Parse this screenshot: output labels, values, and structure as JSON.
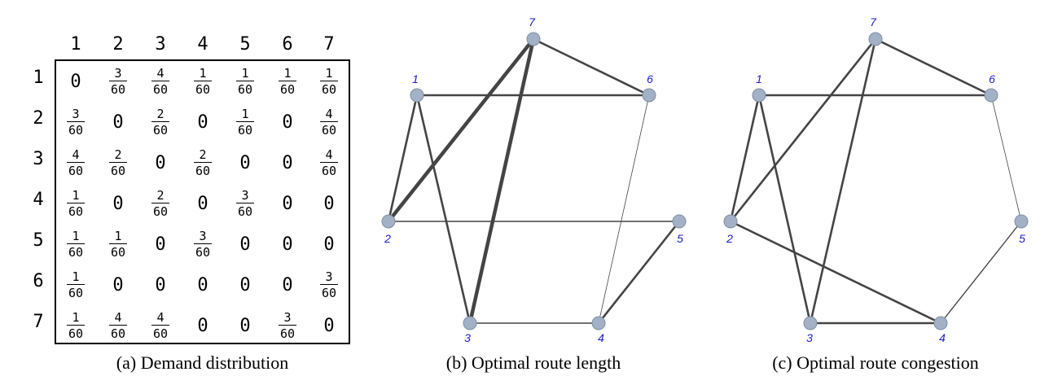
{
  "matrix": {
    "col_labels": [
      "1",
      "2",
      "3",
      "4",
      "5",
      "6",
      "7"
    ],
    "row_labels": [
      "1",
      "2",
      "3",
      "4",
      "5",
      "6",
      "7"
    ],
    "cells": [
      [
        "0",
        "3/60",
        "4/60",
        "1/60",
        "1/60",
        "1/60",
        "1/60"
      ],
      [
        "3/60",
        "0",
        "2/60",
        "0",
        "1/60",
        "0",
        "4/60"
      ],
      [
        "4/60",
        "2/60",
        "0",
        "2/60",
        "0",
        "0",
        "4/60"
      ],
      [
        "1/60",
        "0",
        "2/60",
        "0",
        "3/60",
        "0",
        "0"
      ],
      [
        "1/60",
        "1/60",
        "0",
        "3/60",
        "0",
        "0",
        "0"
      ],
      [
        "1/60",
        "0",
        "0",
        "0",
        "0",
        "0",
        "3/60"
      ],
      [
        "1/60",
        "4/60",
        "4/60",
        "0",
        "0",
        "3/60",
        "0"
      ]
    ]
  },
  "captions": {
    "a": "(a) Demand distribution",
    "b": "(b) Optimal route length",
    "c": "(c) Optimal route congestion"
  },
  "node_labels": [
    "1",
    "2",
    "3",
    "4",
    "5",
    "6",
    "7"
  ],
  "colors": {
    "node_fill": "#a3b1c6",
    "node_stroke": "#7f8ea3",
    "edge": "#444444",
    "label": "#1a1acc"
  },
  "graph_b": {
    "edges": [
      {
        "from": "1",
        "to": "6",
        "weight": "medium"
      },
      {
        "from": "1",
        "to": "2",
        "weight": "medium"
      },
      {
        "from": "1",
        "to": "3",
        "weight": "medium"
      },
      {
        "from": "2",
        "to": "7",
        "weight": "heavy"
      },
      {
        "from": "3",
        "to": "7",
        "weight": "heavy"
      },
      {
        "from": "7",
        "to": "6",
        "weight": "medium"
      },
      {
        "from": "2",
        "to": "5",
        "weight": "light"
      },
      {
        "from": "3",
        "to": "4",
        "weight": "light"
      },
      {
        "from": "4",
        "to": "5",
        "weight": "medium"
      },
      {
        "from": "6",
        "to": "4",
        "weight": "thin"
      }
    ]
  },
  "graph_c": {
    "edges": [
      {
        "from": "1",
        "to": "6",
        "weight": "medium"
      },
      {
        "from": "1",
        "to": "2",
        "weight": "medium"
      },
      {
        "from": "1",
        "to": "3",
        "weight": "medium"
      },
      {
        "from": "2",
        "to": "7",
        "weight": "medium"
      },
      {
        "from": "3",
        "to": "7",
        "weight": "medium"
      },
      {
        "from": "7",
        "to": "6",
        "weight": "medium"
      },
      {
        "from": "2",
        "to": "4",
        "weight": "medium"
      },
      {
        "from": "3",
        "to": "4",
        "weight": "medium"
      },
      {
        "from": "4",
        "to": "5",
        "weight": "light"
      },
      {
        "from": "6",
        "to": "5",
        "weight": "thin"
      }
    ]
  }
}
